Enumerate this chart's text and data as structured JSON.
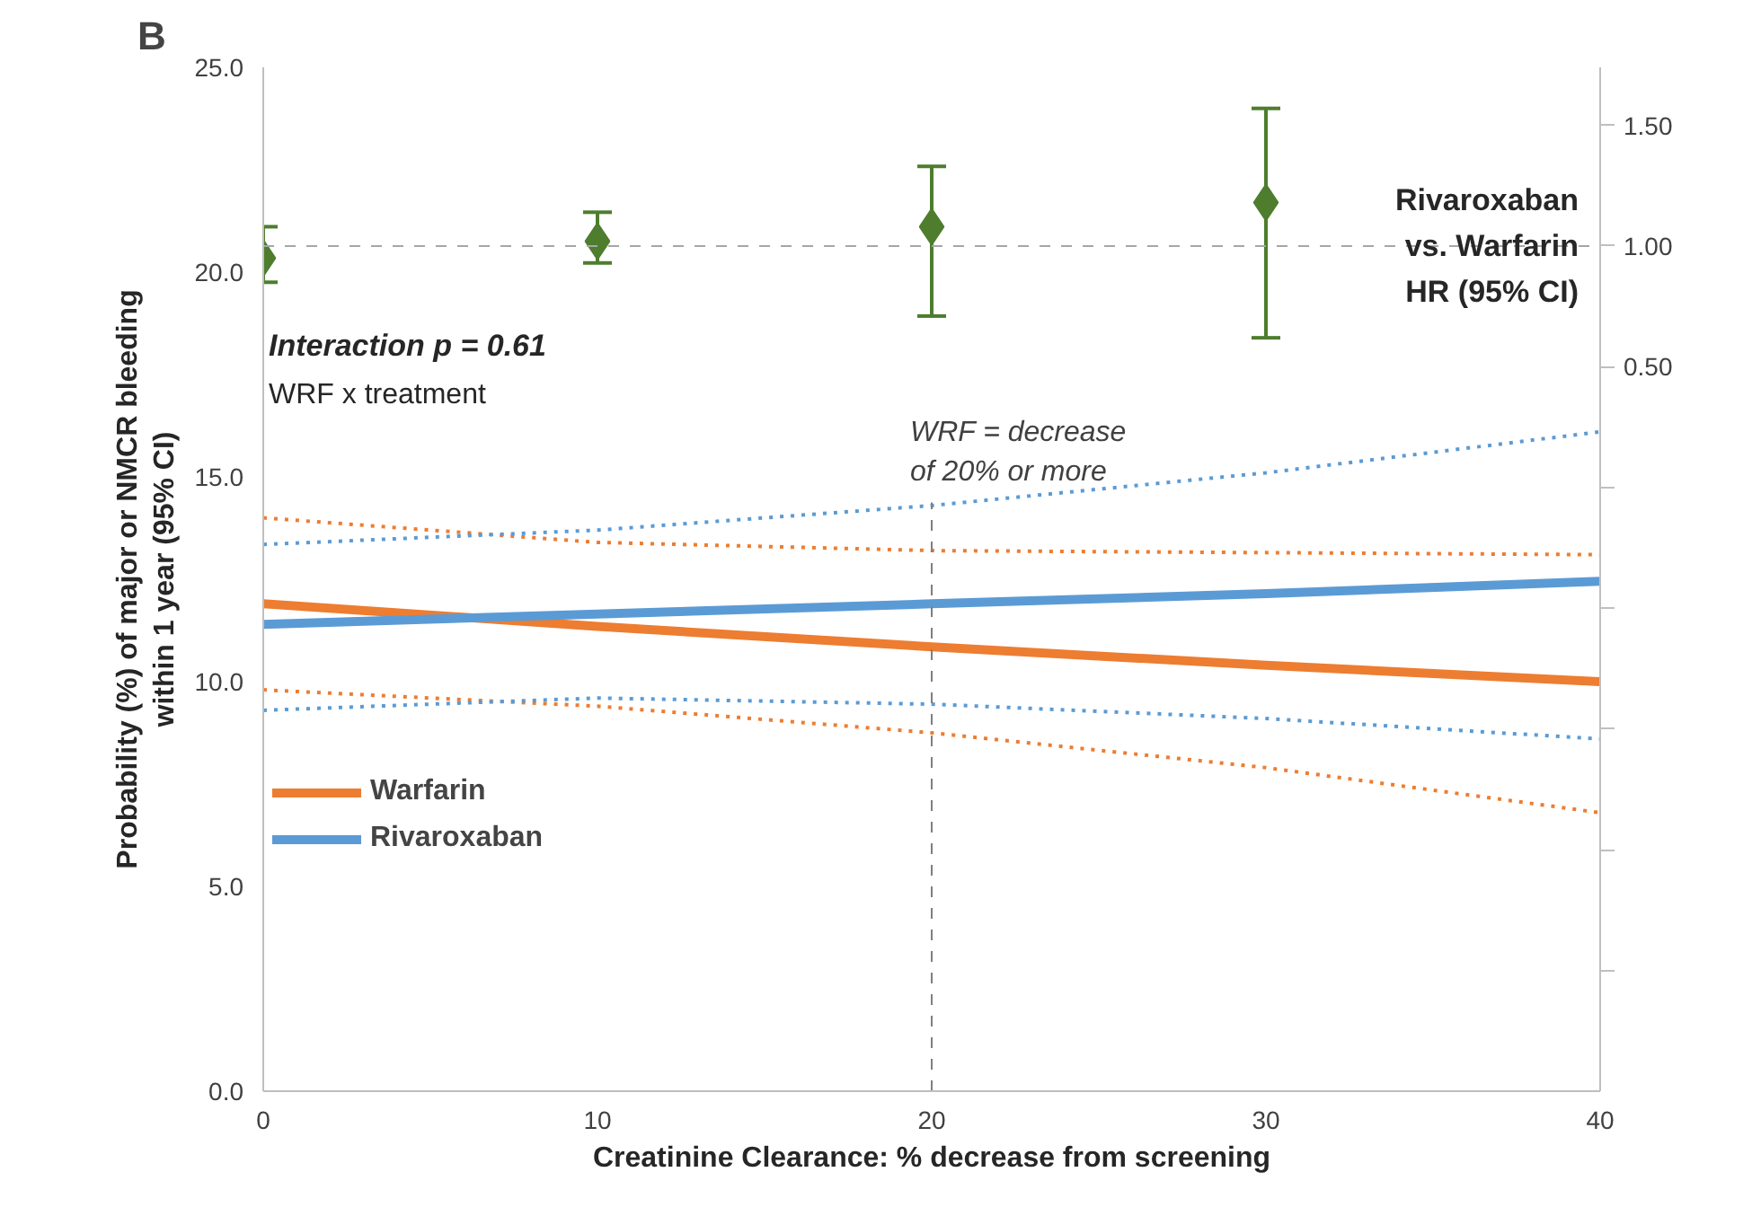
{
  "chart_data": {
    "type": "line",
    "title": "B",
    "xlabel": "Creatinine Clearance: % decrease from screening",
    "ylabel": "Probability (%) of major or NMCR bleeding\nwithin 1 year (95% CI)",
    "y2label": "Rivaroxaban\nvs. Warfarin\nHR (95% CI)",
    "x": [
      0,
      10,
      20,
      30,
      40
    ],
    "xlim": [
      0,
      40
    ],
    "xticks": [
      0,
      10,
      20,
      30,
      40
    ],
    "ylim": [
      0,
      25
    ],
    "yticks": [
      {
        "value": 0,
        "label": "0.0"
      },
      {
        "value": 5,
        "label": "5.0"
      },
      {
        "value": 10,
        "label": "10.0"
      },
      {
        "value": 15,
        "label": "15.0"
      },
      {
        "value": 20,
        "label": "20.0"
      },
      {
        "value": 25,
        "label": "25.0"
      }
    ],
    "y2lim": [
      -2.5,
      1.74
    ],
    "y2ticks": [
      {
        "value": -2.0,
        "label": null
      },
      {
        "value": -1.5,
        "label": null
      },
      {
        "value": -1.0,
        "label": null
      },
      {
        "value": -0.5,
        "label": null
      },
      {
        "value": 0.0,
        "label": null
      },
      {
        "value": 0.5,
        "label": "0.50"
      },
      {
        "value": 1.0,
        "label": "1.00"
      },
      {
        "value": 1.5,
        "label": "1.50"
      }
    ],
    "series": [
      {
        "name": "Warfarin",
        "color": "#ed7d31",
        "values": [
          11.9,
          11.35,
          10.85,
          10.4,
          10.0
        ]
      },
      {
        "name": "Rivaroxaban",
        "color": "#5b9bd5",
        "values": [
          11.4,
          11.65,
          11.9,
          12.15,
          12.45
        ]
      },
      {
        "color": "#ed7d31",
        "line_style": "dotted",
        "values": [
          14.0,
          13.4,
          13.2,
          13.15,
          13.1
        ]
      },
      {
        "color": "#ed7d31",
        "line_style": "dotted",
        "values": [
          9.8,
          9.4,
          8.75,
          7.9,
          6.8
        ]
      },
      {
        "color": "#5b9bd5",
        "line_style": "dotted",
        "values": [
          13.35,
          13.7,
          14.3,
          15.1,
          16.1
        ]
      },
      {
        "color": "#5b9bd5",
        "line_style": "dotted",
        "values": [
          9.3,
          9.6,
          9.45,
          9.1,
          8.6
        ]
      },
      {
        "type": "scatter",
        "axis": "y2",
        "color": "#4e7d2e",
        "marker": "diamond",
        "x": [
          0,
          10,
          20,
          30
        ],
        "values": [
          0.95,
          1.02,
          1.08,
          1.18
        ],
        "errors": [
          [
            0.85,
            1.08
          ],
          [
            0.93,
            1.14
          ],
          [
            0.71,
            1.33
          ],
          [
            0.62,
            1.57
          ]
        ]
      }
    ],
    "ref_lines": [
      {
        "axis": "y2",
        "value": 1.0,
        "color": "#a6a6a6",
        "line_style": "dashed"
      },
      {
        "axis": "x",
        "value": 20,
        "label": "WRF = decrease\nof 20% or more",
        "color": "#7f7f7f",
        "line_style": "dashed"
      }
    ],
    "annotations": [
      "Interaction p = 0.61",
      "WRF x treatment"
    ],
    "legend": "left",
    "grid": false,
    "marker": "none",
    "line_style": "solid"
  }
}
